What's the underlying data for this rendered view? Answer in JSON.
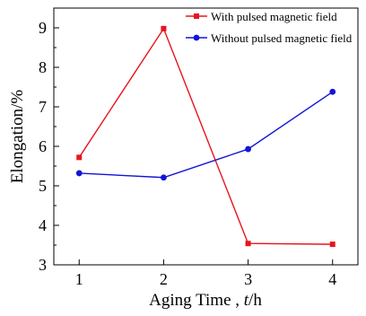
{
  "chart_data": {
    "type": "line",
    "title": "",
    "xlabel_main": "Aging Time , ",
    "xlabel_var": "t",
    "xlabel_unit": "/h",
    "ylabel": "Elongation/%",
    "x": [
      1,
      2,
      3,
      4
    ],
    "x_ticks": [
      "1",
      "2",
      "3",
      "4"
    ],
    "y_ticks": [
      "3",
      "4",
      "5",
      "6",
      "7",
      "8",
      "9"
    ],
    "xlim": [
      0.7,
      4.3
    ],
    "ylim": [
      3,
      9.5
    ],
    "grid": false,
    "legend_position": "top-right",
    "series": [
      {
        "name": "With pulsed magnetic field",
        "values": [
          5.72,
          8.98,
          3.54,
          3.52
        ],
        "color": "#e8141e",
        "marker": "square"
      },
      {
        "name": "Without pulsed magnetic field",
        "values": [
          5.32,
          5.21,
          5.93,
          7.38
        ],
        "color": "#1414d8",
        "marker": "circle"
      }
    ]
  }
}
